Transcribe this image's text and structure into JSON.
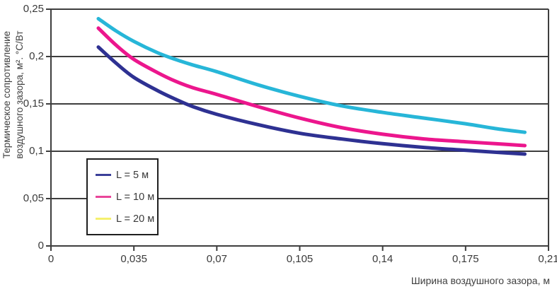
{
  "chart_data": {
    "type": "line",
    "title": "",
    "xlabel": "Ширина воздушного зазора, м",
    "ylabel_line1": "Термическое сопротивление",
    "ylabel_line2": "воздушного зазора, м². °С/Вт",
    "xlim": [
      0,
      0.21
    ],
    "ylim": [
      0,
      0.25
    ],
    "x_ticks": [
      "0",
      "0,035",
      "0,07",
      "0,105",
      "0,14",
      "0,175",
      "0,21"
    ],
    "x_tick_values": [
      0,
      0.035,
      0.07,
      0.105,
      0.14,
      0.175,
      0.21
    ],
    "y_ticks": [
      "0",
      "0,05",
      "0,1",
      "0,15",
      "0,2",
      "0,25"
    ],
    "y_tick_values": [
      0,
      0.05,
      0.1,
      0.15,
      0.2,
      0.25
    ],
    "grid": "horizontal",
    "legend_position": "inside-lower-left",
    "x": [
      0.02,
      0.0275,
      0.035,
      0.045,
      0.0525,
      0.06,
      0.07,
      0.0875,
      0.105,
      0.1225,
      0.14,
      0.1575,
      0.175,
      0.1875,
      0.2
    ],
    "series": [
      {
        "name": "L = 5 м",
        "curve_color": "#2e3192",
        "legend_color": "#3b3f99",
        "values": [
          0.21,
          0.193,
          0.178,
          0.164,
          0.155,
          0.147,
          0.139,
          0.128,
          0.119,
          0.113,
          0.108,
          0.104,
          0.101,
          0.099,
          0.097
        ]
      },
      {
        "name": "L = 10 м",
        "curve_color": "#ec168d",
        "legend_color": "#e9459a",
        "values": [
          0.23,
          0.212,
          0.197,
          0.183,
          0.174,
          0.167,
          0.16,
          0.147,
          0.135,
          0.125,
          0.118,
          0.113,
          0.11,
          0.108,
          0.106
        ]
      },
      {
        "name": "L = 20 м",
        "curve_color": "#27b6d8",
        "legend_color": "#f5f06e",
        "values": [
          0.24,
          0.227,
          0.216,
          0.204,
          0.197,
          0.191,
          0.184,
          0.17,
          0.158,
          0.148,
          0.141,
          0.135,
          0.129,
          0.124,
          0.12
        ]
      }
    ],
    "colors": {
      "grid": "#3e3e3e",
      "axis": "#3e3e3e",
      "text": "#3a3a3a",
      "background": "#ffffff",
      "legend_border": "#1f1f1f"
    }
  }
}
